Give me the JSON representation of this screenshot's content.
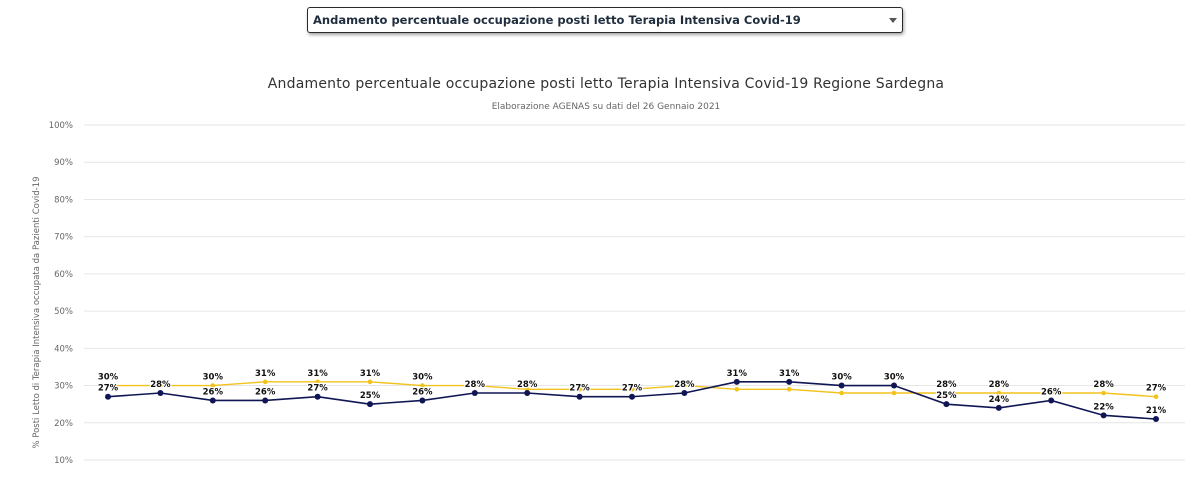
{
  "selector": {
    "selected": "Andamento percentuale occupazione posti letto Terapia Intensiva Covid-19"
  },
  "chart_data": {
    "type": "line",
    "title": "Andamento percentuale occupazione posti letto Terapia Intensiva Covid-19 Regione Sardegna",
    "subtitle": "Elaborazione AGENAS su dati del 26 Gennaio 2021",
    "ylabel": "% Posti Letto di Terapia Intensiva occupata da Pazienti Covid-19",
    "xlabel": "",
    "ylim": [
      10,
      100
    ],
    "yticks": [
      10,
      20,
      30,
      40,
      50,
      60,
      70,
      80,
      90,
      100
    ],
    "ytick_labels": [
      "10%",
      "20%",
      "30%",
      "40%",
      "50%",
      "60%",
      "70%",
      "80%",
      "90%",
      "100%"
    ],
    "grid": true,
    "legend": "none",
    "series": [
      {
        "color": "#f2c31c",
        "values": [
          30,
          30,
          30,
          31,
          31,
          31,
          30,
          30,
          29,
          29,
          29,
          30,
          29,
          29,
          28,
          28,
          28,
          28,
          28,
          28,
          27
        ],
        "labels": [
          "30%",
          "",
          "30%",
          "31%",
          "31%",
          "31%",
          "30%",
          "",
          "",
          "",
          "",
          "",
          "",
          "",
          "",
          "",
          "28%",
          "28%",
          "",
          "28%",
          "27%"
        ]
      },
      {
        "color": "#101654",
        "values": [
          27,
          28,
          26,
          26,
          27,
          25,
          26,
          28,
          28,
          27,
          27,
          28,
          31,
          31,
          30,
          30,
          25,
          24,
          26,
          22,
          21
        ],
        "labels": [
          "27%",
          "28%",
          "26%",
          "26%",
          "27%",
          "25%",
          "26%",
          "28%",
          "28%",
          "27%",
          "27%",
          "28%",
          "31%",
          "31%",
          "30%",
          "30%",
          "25%",
          "24%",
          "26%",
          "22%",
          "21%"
        ]
      }
    ]
  }
}
